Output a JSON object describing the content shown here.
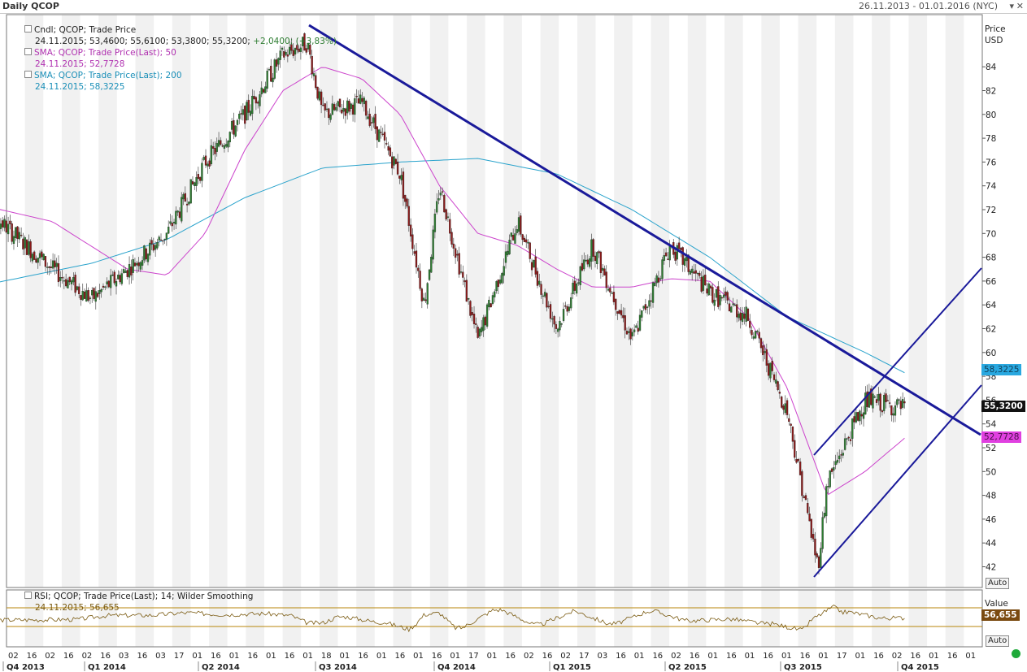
{
  "window": {
    "title": "Daily QCOP",
    "date_range": "26.11.2013 - 01.01.2016 (NYC)"
  },
  "price_panel": {
    "axis_title_1": "Price",
    "axis_title_2": "USD",
    "auto_label": "Auto",
    "legend": {
      "cndl_title": "Cndl; QCOP; Trade Price",
      "cndl_values": "24.11.2015; 53,4600; 55,6100; 53,3800; 55,3200;",
      "cndl_change": "+2,0400; (+3,83%)",
      "sma50_title": "SMA; QCOP; Trade Price(Last); 50",
      "sma50_values": "24.11.2015; 52,7728",
      "sma200_title": "SMA; QCOP; Trade Price(Last); 200",
      "sma200_values": "24.11.2015; 58,3225"
    },
    "tags": {
      "sma200": "58,3225",
      "last": "55,3200",
      "sma50": "52,7728"
    }
  },
  "rsi_panel": {
    "legend_title": "RSI; QCOP; Trade Price(Last); 14; Wilder Smoothing",
    "legend_values": "24.11.2015; 56,655",
    "axis_title": "Value",
    "tag": "56,655",
    "auto_label": "Auto"
  },
  "colors": {
    "candle_up": "#2e7d32",
    "candle_down": "#8b1a1a",
    "sma50": "#cc44cc",
    "sma200": "#2aa3cc",
    "trendline": "#1a1a9a",
    "rsi": "#7a5a10",
    "rsi_bands": "#b8860b"
  },
  "chart_data": {
    "type": "line",
    "y_ticks": [
      42,
      44,
      46,
      48,
      50,
      52,
      54,
      56,
      58,
      60,
      62,
      64,
      66,
      68,
      70,
      72,
      74,
      76,
      78,
      80,
      82,
      84
    ],
    "ylim": [
      40,
      86
    ],
    "x_day_labels": [
      "02",
      "16",
      "02",
      "16",
      "02",
      "16",
      "03",
      "16",
      "03",
      "17",
      "01",
      "16",
      "01",
      "16",
      "01",
      "16",
      "01",
      "18",
      "01",
      "16",
      "01",
      "16",
      "01",
      "16",
      "01",
      "17",
      "01",
      "16",
      "02",
      "16",
      "02",
      "17",
      "03",
      "16",
      "01",
      "16",
      "02",
      "16",
      "01",
      "16",
      "01",
      "16",
      "01",
      "16",
      "01",
      "17",
      "01",
      "16",
      "02",
      "16",
      "01",
      "16",
      "01"
    ],
    "quarters": [
      "Q4 2013",
      "Q1 2014",
      "Q2 2014",
      "Q3 2014",
      "Q4 2014",
      "Q1 2015",
      "Q2 2015",
      "Q3 2015",
      "Q4 2015"
    ],
    "series": [
      {
        "name": "Cndl; QCOP; Trade Price",
        "x": [
          "2013-11",
          "2013-12",
          "2014-01",
          "2014-02",
          "2014-03",
          "2014-04",
          "2014-05",
          "2014-06",
          "2014-07",
          "2014-07-20",
          "2014-08",
          "2014-09",
          "2014-10",
          "2014-10-20",
          "2014-11",
          "2014-12",
          "2015-01",
          "2015-02",
          "2015-03",
          "2015-04",
          "2015-05",
          "2015-06",
          "2015-07",
          "2015-08",
          "2015-08-25",
          "2015-09",
          "2015-10",
          "2015-11"
        ],
        "y": [
          73,
          70,
          67,
          64.5,
          67,
          70,
          76,
          80,
          85,
          86,
          80,
          81,
          75,
          64,
          74,
          61,
          71,
          62,
          69,
          61,
          69,
          65,
          63,
          55,
          42,
          49,
          56,
          55.3
        ]
      },
      {
        "name": "SMA; QCOP; Trade Price(Last); 50",
        "x": [
          "2013-11",
          "2014-01",
          "2014-03",
          "2014-04",
          "2014-05",
          "2014-06",
          "2014-07",
          "2014-08",
          "2014-09",
          "2014-10",
          "2014-11",
          "2014-12",
          "2015-01",
          "2015-02",
          "2015-03",
          "2015-04",
          "2015-05",
          "2015-06",
          "2015-07",
          "2015-08",
          "2015-09",
          "2015-10",
          "2015-11"
        ],
        "y": [
          72.5,
          71,
          67,
          66.5,
          70,
          77,
          82,
          84,
          83,
          80,
          74,
          70,
          69,
          67,
          65.5,
          65.5,
          66.2,
          66,
          63,
          57,
          48,
          50,
          52.8
        ]
      },
      {
        "name": "SMA; QCOP; Trade Price(Last); 200",
        "x": [
          "2013-11",
          "2014-02",
          "2014-04",
          "2014-06",
          "2014-08",
          "2014-10",
          "2014-12",
          "2015-02",
          "2015-04",
          "2015-06",
          "2015-08",
          "2015-10",
          "2015-11"
        ],
        "y": [
          65.5,
          67.5,
          69.5,
          73,
          75.5,
          76,
          76.3,
          75,
          72,
          68,
          63,
          60,
          58.3
        ]
      }
    ]
  }
}
